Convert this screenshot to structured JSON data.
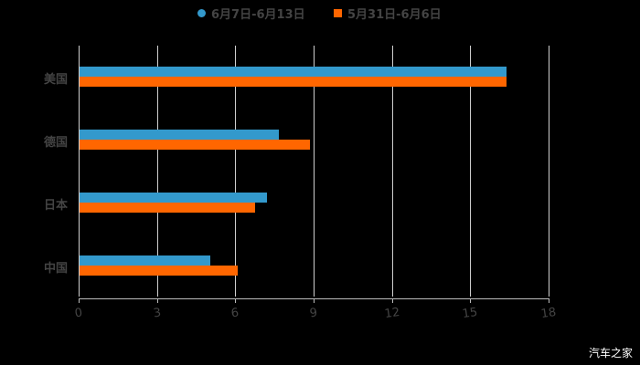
{
  "chart_data": {
    "type": "bar",
    "orientation": "horizontal",
    "title": "",
    "xlabel": "",
    "ylabel": "",
    "categories": [
      "美国",
      "德国",
      "日本",
      "中国"
    ],
    "series": [
      {
        "name": "6月7日-6月13日",
        "color": "#3399CC",
        "values": [
          16.35,
          7.63,
          7.18,
          5.0
        ]
      },
      {
        "name": "5月31日-6月6日",
        "color": "#FF6600",
        "values": [
          16.35,
          8.82,
          6.72,
          6.06
        ]
      }
    ],
    "xlim": [
      0,
      18
    ],
    "xticks": [
      "0",
      "3",
      "6",
      "9",
      "12",
      "15",
      "18"
    ],
    "grid": true,
    "legend_position": "top"
  },
  "legend": [
    {
      "label": "6月7日-6月13日",
      "color": "#3399CC",
      "shape": "circle"
    },
    {
      "label": "5月31日-6月6日",
      "color": "#FF6600",
      "shape": "square"
    }
  ],
  "watermark": "汽车之家"
}
